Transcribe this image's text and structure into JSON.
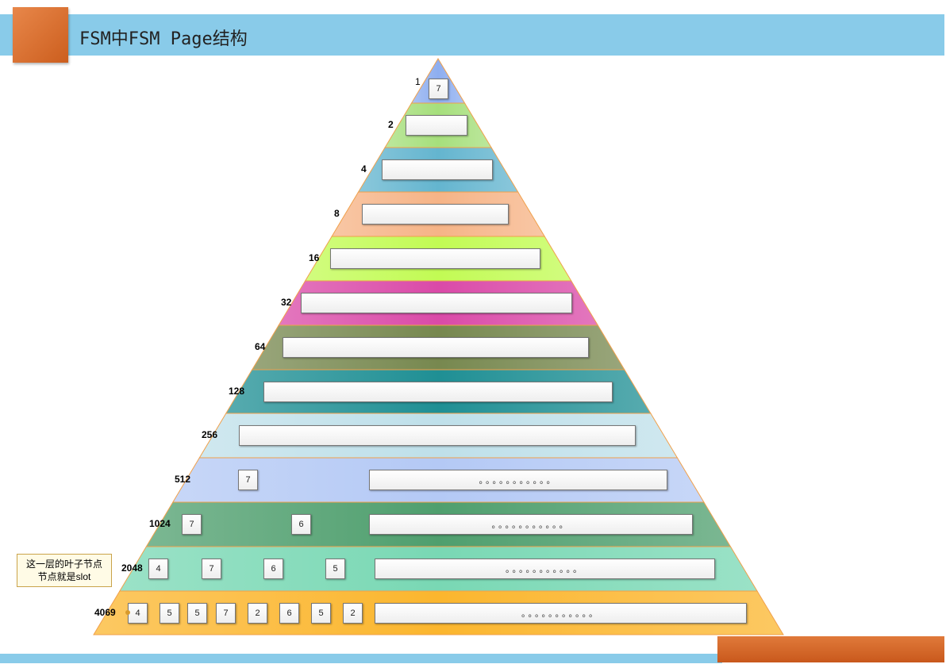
{
  "title": "FSM中FSM Page结构",
  "callout": {
    "line1": "这一层的叶子节点",
    "line2": "节点就是slot"
  },
  "levels": [
    {
      "count": "1",
      "color": "#8eaef0",
      "boxes": [
        "7"
      ],
      "bar": ""
    },
    {
      "count": "2",
      "color": "#a6df7c",
      "boxes": [],
      "bar": ""
    },
    {
      "count": "4",
      "color": "#64b5cf",
      "boxes": [],
      "bar": ""
    },
    {
      "count": "8",
      "color": "#f6b487",
      "boxes": [],
      "bar": ""
    },
    {
      "count": "16",
      "color": "#c2fb54",
      "boxes": [],
      "bar": ""
    },
    {
      "count": "32",
      "color": "#da4aa8",
      "boxes": [],
      "bar": ""
    },
    {
      "count": "64",
      "color": "#77884f",
      "boxes": [],
      "bar": ""
    },
    {
      "count": "128",
      "color": "#1f8f94",
      "boxes": [],
      "bar": ""
    },
    {
      "count": "256",
      "color": "#bfe0ea",
      "boxes": [],
      "bar": ""
    },
    {
      "count": "512",
      "color": "#b4c9f5",
      "boxes": [
        "7"
      ],
      "bar": "。。。。。。。。。。。"
    },
    {
      "count": "1024",
      "color": "#4f9f6e",
      "boxes": [
        "7",
        "6"
      ],
      "bar": "。。。。。。。。。。。"
    },
    {
      "count": "2048",
      "color": "#79d8b4",
      "boxes": [
        "4",
        "7",
        "6",
        "5"
      ],
      "bar": "。。。。。。。。。。。"
    },
    {
      "count": "4069",
      "color": "#fbb62e",
      "boxes": [
        "4",
        "5",
        "5",
        "7",
        "2",
        "6",
        "5",
        "2"
      ],
      "bar": "。。。。。。。。。。。"
    }
  ]
}
